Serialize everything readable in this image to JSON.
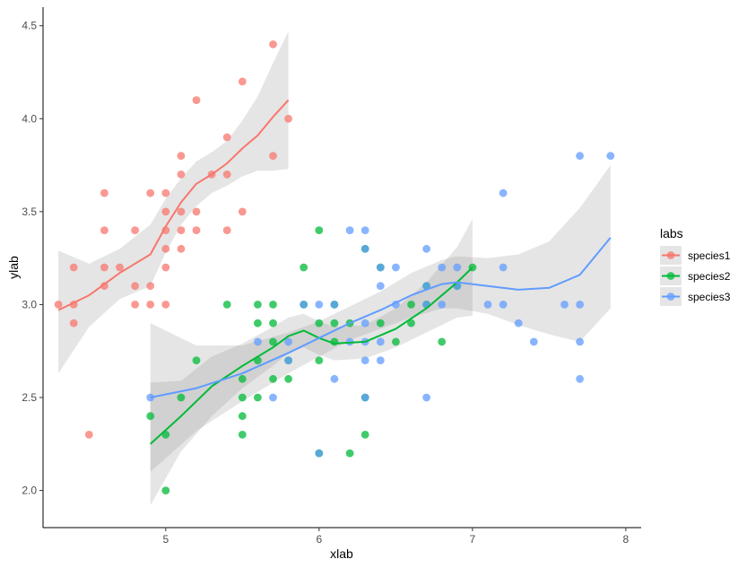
{
  "chart_data": {
    "type": "scatter",
    "title": "",
    "xlabel": "xlab",
    "ylabel": "ylab",
    "xlim": [
      4.2,
      8.1
    ],
    "ylim": [
      1.8,
      4.6
    ],
    "x_ticks": [
      "5",
      "6",
      "7",
      "8"
    ],
    "y_ticks": [
      "2.0",
      "2.5",
      "3.0",
      "3.5",
      "4.0",
      "4.5"
    ],
    "grid": false,
    "legend": {
      "title": "labs",
      "position": "right"
    },
    "series": [
      {
        "name": "species1",
        "color": "#F8766D",
        "points": [
          [
            4.3,
            3.0
          ],
          [
            4.4,
            2.9
          ],
          [
            4.4,
            3.0
          ],
          [
            4.4,
            3.2
          ],
          [
            4.5,
            2.3
          ],
          [
            4.6,
            3.1
          ],
          [
            4.6,
            3.2
          ],
          [
            4.6,
            3.4
          ],
          [
            4.6,
            3.6
          ],
          [
            4.7,
            3.2
          ],
          [
            4.8,
            3.0
          ],
          [
            4.8,
            3.1
          ],
          [
            4.8,
            3.4
          ],
          [
            4.9,
            3.0
          ],
          [
            4.9,
            3.1
          ],
          [
            4.9,
            3.6
          ],
          [
            5.0,
            3.0
          ],
          [
            5.0,
            3.2
          ],
          [
            5.0,
            3.3
          ],
          [
            5.0,
            3.4
          ],
          [
            5.0,
            3.5
          ],
          [
            5.0,
            3.6
          ],
          [
            5.1,
            3.3
          ],
          [
            5.1,
            3.4
          ],
          [
            5.1,
            3.5
          ],
          [
            5.1,
            3.7
          ],
          [
            5.1,
            3.8
          ],
          [
            5.2,
            3.4
          ],
          [
            5.2,
            3.5
          ],
          [
            5.2,
            4.1
          ],
          [
            5.3,
            3.7
          ],
          [
            5.4,
            3.4
          ],
          [
            5.4,
            3.7
          ],
          [
            5.4,
            3.9
          ],
          [
            5.5,
            3.5
          ],
          [
            5.5,
            4.2
          ],
          [
            5.7,
            3.8
          ],
          [
            5.7,
            4.4
          ],
          [
            5.8,
            4.0
          ]
        ],
        "smooth": [
          [
            4.3,
            2.97
          ],
          [
            4.5,
            3.05
          ],
          [
            4.7,
            3.17
          ],
          [
            4.9,
            3.27
          ],
          [
            5.0,
            3.42
          ],
          [
            5.1,
            3.55
          ],
          [
            5.2,
            3.65
          ],
          [
            5.3,
            3.7
          ],
          [
            5.4,
            3.76
          ],
          [
            5.5,
            3.84
          ],
          [
            5.6,
            3.91
          ],
          [
            5.7,
            4.01
          ],
          [
            5.8,
            4.1
          ]
        ],
        "band": [
          [
            4.3,
            2.63,
            3.29
          ],
          [
            4.5,
            2.88,
            3.22
          ],
          [
            4.7,
            3.03,
            3.3
          ],
          [
            4.9,
            3.1,
            3.43
          ],
          [
            5.0,
            3.28,
            3.57
          ],
          [
            5.1,
            3.43,
            3.68
          ],
          [
            5.2,
            3.53,
            3.77
          ],
          [
            5.3,
            3.6,
            3.82
          ],
          [
            5.4,
            3.64,
            3.88
          ],
          [
            5.5,
            3.69,
            3.99
          ],
          [
            5.6,
            3.72,
            4.12
          ],
          [
            5.7,
            3.72,
            4.3
          ],
          [
            5.8,
            3.73,
            4.47
          ]
        ]
      },
      {
        "name": "species2",
        "color": "#00BA38",
        "points": [
          [
            4.9,
            2.4
          ],
          [
            5.0,
            2.0
          ],
          [
            5.0,
            2.3
          ],
          [
            5.1,
            2.5
          ],
          [
            5.2,
            2.7
          ],
          [
            5.4,
            3.0
          ],
          [
            5.5,
            2.3
          ],
          [
            5.5,
            2.4
          ],
          [
            5.5,
            2.5
          ],
          [
            5.5,
            2.6
          ],
          [
            5.6,
            2.5
          ],
          [
            5.6,
            2.7
          ],
          [
            5.6,
            2.9
          ],
          [
            5.6,
            3.0
          ],
          [
            5.7,
            2.6
          ],
          [
            5.7,
            2.8
          ],
          [
            5.7,
            2.9
          ],
          [
            5.7,
            3.0
          ],
          [
            5.8,
            2.6
          ],
          [
            5.8,
            2.7
          ],
          [
            5.9,
            3.0
          ],
          [
            5.9,
            3.2
          ],
          [
            6.0,
            2.2
          ],
          [
            6.0,
            2.7
          ],
          [
            6.0,
            2.9
          ],
          [
            6.0,
            3.4
          ],
          [
            6.1,
            2.8
          ],
          [
            6.1,
            2.9
          ],
          [
            6.1,
            3.0
          ],
          [
            6.2,
            2.2
          ],
          [
            6.2,
            2.9
          ],
          [
            6.3,
            2.3
          ],
          [
            6.3,
            2.5
          ],
          [
            6.3,
            3.3
          ],
          [
            6.4,
            2.9
          ],
          [
            6.4,
            3.2
          ],
          [
            6.5,
            2.8
          ],
          [
            6.6,
            2.9
          ],
          [
            6.6,
            3.0
          ],
          [
            6.7,
            3.0
          ],
          [
            6.7,
            3.1
          ],
          [
            6.8,
            2.8
          ],
          [
            6.9,
            3.1
          ],
          [
            7.0,
            3.2
          ]
        ],
        "smooth": [
          [
            4.9,
            2.25
          ],
          [
            5.1,
            2.4
          ],
          [
            5.3,
            2.56
          ],
          [
            5.5,
            2.67
          ],
          [
            5.7,
            2.77
          ],
          [
            5.8,
            2.83
          ],
          [
            5.9,
            2.86
          ],
          [
            6.0,
            2.82
          ],
          [
            6.1,
            2.79
          ],
          [
            6.3,
            2.8
          ],
          [
            6.5,
            2.87
          ],
          [
            6.7,
            2.98
          ],
          [
            6.9,
            3.12
          ],
          [
            7.0,
            3.2
          ]
        ],
        "band": [
          [
            4.9,
            1.92,
            2.58
          ],
          [
            5.1,
            2.21,
            2.59
          ],
          [
            5.3,
            2.4,
            2.72
          ],
          [
            5.5,
            2.55,
            2.79
          ],
          [
            5.7,
            2.67,
            2.88
          ],
          [
            5.8,
            2.74,
            2.93
          ],
          [
            5.9,
            2.77,
            2.95
          ],
          [
            6.0,
            2.73,
            2.91
          ],
          [
            6.1,
            2.7,
            2.88
          ],
          [
            6.3,
            2.71,
            2.89
          ],
          [
            6.5,
            2.77,
            2.98
          ],
          [
            6.7,
            2.85,
            3.12
          ],
          [
            6.9,
            2.93,
            3.31
          ],
          [
            7.0,
            2.94,
            3.46
          ]
        ]
      },
      {
        "name": "species3",
        "color": "#619CFF",
        "points": [
          [
            4.9,
            2.5
          ],
          [
            5.6,
            2.8
          ],
          [
            5.7,
            2.5
          ],
          [
            5.8,
            2.7
          ],
          [
            5.8,
            2.8
          ],
          [
            5.9,
            3.0
          ],
          [
            6.0,
            2.2
          ],
          [
            6.0,
            3.0
          ],
          [
            6.1,
            2.6
          ],
          [
            6.1,
            3.0
          ],
          [
            6.2,
            2.8
          ],
          [
            6.2,
            3.4
          ],
          [
            6.3,
            2.5
          ],
          [
            6.3,
            2.7
          ],
          [
            6.3,
            2.8
          ],
          [
            6.3,
            2.9
          ],
          [
            6.3,
            3.3
          ],
          [
            6.3,
            3.4
          ],
          [
            6.4,
            2.7
          ],
          [
            6.4,
            2.8
          ],
          [
            6.4,
            3.1
          ],
          [
            6.4,
            3.2
          ],
          [
            6.5,
            3.0
          ],
          [
            6.5,
            3.2
          ],
          [
            6.7,
            2.5
          ],
          [
            6.7,
            3.0
          ],
          [
            6.7,
            3.1
          ],
          [
            6.7,
            3.3
          ],
          [
            6.8,
            3.0
          ],
          [
            6.8,
            3.2
          ],
          [
            6.9,
            3.1
          ],
          [
            6.9,
            3.2
          ],
          [
            7.1,
            3.0
          ],
          [
            7.2,
            3.0
          ],
          [
            7.2,
            3.2
          ],
          [
            7.2,
            3.6
          ],
          [
            7.3,
            2.9
          ],
          [
            7.4,
            2.8
          ],
          [
            7.6,
            3.0
          ],
          [
            7.7,
            2.6
          ],
          [
            7.7,
            2.8
          ],
          [
            7.7,
            3.0
          ],
          [
            7.7,
            3.8
          ],
          [
            7.9,
            3.8
          ]
        ],
        "smooth": [
          [
            4.9,
            2.5
          ],
          [
            5.2,
            2.55
          ],
          [
            5.5,
            2.63
          ],
          [
            5.8,
            2.74
          ],
          [
            6.0,
            2.82
          ],
          [
            6.2,
            2.9
          ],
          [
            6.4,
            2.97
          ],
          [
            6.6,
            3.05
          ],
          [
            6.8,
            3.11
          ],
          [
            6.9,
            3.12
          ],
          [
            7.1,
            3.1
          ],
          [
            7.3,
            3.08
          ],
          [
            7.5,
            3.09
          ],
          [
            7.7,
            3.16
          ],
          [
            7.9,
            3.36
          ]
        ],
        "band": [
          [
            4.9,
            2.1,
            2.9
          ],
          [
            5.2,
            2.32,
            2.78
          ],
          [
            5.5,
            2.48,
            2.78
          ],
          [
            5.8,
            2.63,
            2.85
          ],
          [
            6.0,
            2.72,
            2.91
          ],
          [
            6.2,
            2.81,
            2.99
          ],
          [
            6.4,
            2.87,
            3.07
          ],
          [
            6.6,
            2.93,
            3.17
          ],
          [
            6.8,
            2.98,
            3.24
          ],
          [
            6.9,
            2.98,
            3.26
          ],
          [
            7.1,
            2.95,
            3.25
          ],
          [
            7.3,
            2.89,
            3.27
          ],
          [
            7.5,
            2.84,
            3.34
          ],
          [
            7.7,
            2.8,
            3.52
          ],
          [
            7.9,
            2.98,
            3.75
          ]
        ]
      }
    ]
  }
}
